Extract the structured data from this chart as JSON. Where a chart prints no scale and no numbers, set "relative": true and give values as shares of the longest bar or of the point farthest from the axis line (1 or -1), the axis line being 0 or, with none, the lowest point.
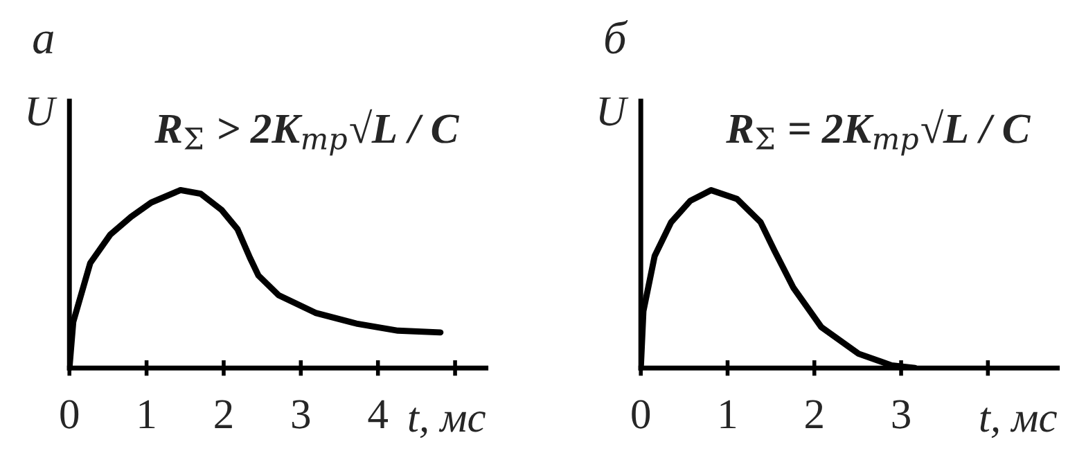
{
  "chart_data": [
    {
      "type": "line",
      "title": "а",
      "xlabel": "t, мс",
      "ylabel": "U",
      "annotations": [
        "R$_{Σ}$ > 2K$_{тр}$√L / C"
      ],
      "relative": true,
      "x": [
        0,
        0.05,
        0.27,
        0.53,
        0.8,
        1.06,
        1.44,
        1.7,
        1.97,
        2.18,
        2.34,
        2.45,
        2.71,
        3.19,
        3.72,
        4.26,
        4.81
      ],
      "series": [
        {
          "color": "#000000",
          "values": [
            0,
            0.26,
            0.59,
            0.75,
            0.85,
            0.93,
            1.0,
            0.98,
            0.89,
            0.78,
            0.62,
            0.52,
            0.41,
            0.31,
            0.25,
            0.21,
            0.2
          ]
        }
      ],
      "xlim": [
        0,
        5.4
      ],
      "xticks": [
        0,
        1,
        2,
        3,
        4,
        {
          "value": 5,
          "label": null
        }
      ]
    },
    {
      "type": "line",
      "title": "б",
      "xlabel": "t, мс",
      "ylabel": "U",
      "annotations": [
        "R$_{Σ}$ = 2K$_{тр}$√L / C"
      ],
      "relative": true,
      "x": [
        0,
        0.03,
        0.16,
        0.35,
        0.57,
        0.81,
        1.11,
        1.38,
        1.54,
        1.76,
        2.08,
        2.51,
        2.89,
        3.16
      ],
      "series": [
        {
          "color": "#000000",
          "values": [
            0,
            0.32,
            0.63,
            0.82,
            0.94,
            1.0,
            0.95,
            0.82,
            0.66,
            0.45,
            0.23,
            0.08,
            0.015,
            0
          ]
        }
      ],
      "xlim": [
        0,
        4.8
      ],
      "xticks": [
        0,
        1,
        2,
        3,
        {
          "value": 4,
          "label": null
        }
      ]
    }
  ]
}
